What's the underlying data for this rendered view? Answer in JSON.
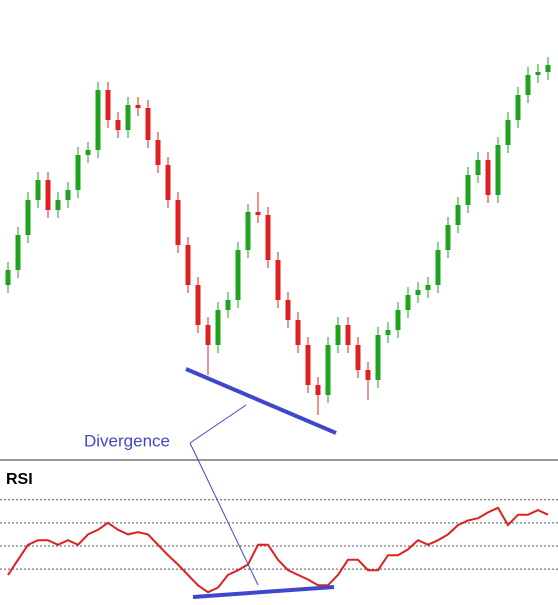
{
  "chart_data": [
    {
      "type": "candlestick",
      "annotation": "Divergence",
      "ylim": [
        0,
        460
      ],
      "up_color": "#1fa31f",
      "down_color": "#e02020",
      "open": [
        175,
        190,
        225,
        260,
        280,
        250,
        260,
        270,
        305,
        310,
        370,
        340,
        330,
        355,
        352,
        320,
        295,
        260,
        215,
        175,
        135,
        115,
        150,
        160,
        210,
        248,
        245,
        200,
        160,
        140,
        115,
        75,
        65,
        115,
        135,
        115,
        90,
        80,
        125,
        130,
        150,
        165,
        170,
        175,
        210,
        235,
        255,
        285,
        300,
        265,
        315,
        340,
        365,
        385,
        388
      ],
      "high": [
        198,
        233,
        268,
        288,
        288,
        268,
        278,
        313,
        318,
        378,
        378,
        348,
        363,
        363,
        360,
        328,
        303,
        268,
        223,
        183,
        143,
        158,
        168,
        218,
        256,
        268,
        253,
        208,
        168,
        148,
        123,
        83,
        123,
        143,
        143,
        123,
        98,
        133,
        138,
        158,
        173,
        178,
        183,
        218,
        243,
        263,
        293,
        308,
        308,
        323,
        348,
        373,
        393,
        396,
        403
      ],
      "low": [
        167,
        182,
        217,
        252,
        242,
        242,
        252,
        262,
        297,
        302,
        332,
        322,
        322,
        344,
        312,
        287,
        252,
        207,
        167,
        127,
        85,
        107,
        142,
        152,
        202,
        237,
        192,
        152,
        132,
        107,
        67,
        45,
        57,
        107,
        107,
        82,
        60,
        72,
        117,
        122,
        142,
        157,
        162,
        167,
        202,
        227,
        247,
        277,
        257,
        257,
        307,
        332,
        357,
        377,
        380
      ],
      "close": [
        190,
        225,
        260,
        280,
        250,
        260,
        270,
        305,
        310,
        370,
        340,
        330,
        355,
        352,
        320,
        295,
        260,
        215,
        175,
        135,
        115,
        150,
        160,
        210,
        248,
        245,
        200,
        160,
        140,
        115,
        75,
        65,
        115,
        135,
        115,
        90,
        80,
        125,
        130,
        150,
        165,
        170,
        175,
        210,
        235,
        255,
        285,
        300,
        265,
        315,
        340,
        365,
        385,
        388,
        395
      ]
    },
    {
      "type": "line",
      "title": "RSI",
      "color": "#e02020",
      "ylim": [
        -5,
        110
      ],
      "yticks": [
        20,
        40,
        60,
        80
      ],
      "values": [
        15,
        28,
        41,
        45,
        45,
        41,
        45,
        41,
        50,
        54,
        60,
        54,
        50,
        52,
        50,
        41,
        32,
        24,
        15,
        6,
        0,
        4,
        15,
        19,
        24,
        41,
        41,
        28,
        19,
        15,
        11,
        6,
        6,
        15,
        28,
        28,
        19,
        19,
        32,
        32,
        37,
        45,
        41,
        45,
        50,
        58,
        62,
        64,
        69,
        73,
        58,
        67,
        67,
        71,
        67
      ]
    }
  ]
}
